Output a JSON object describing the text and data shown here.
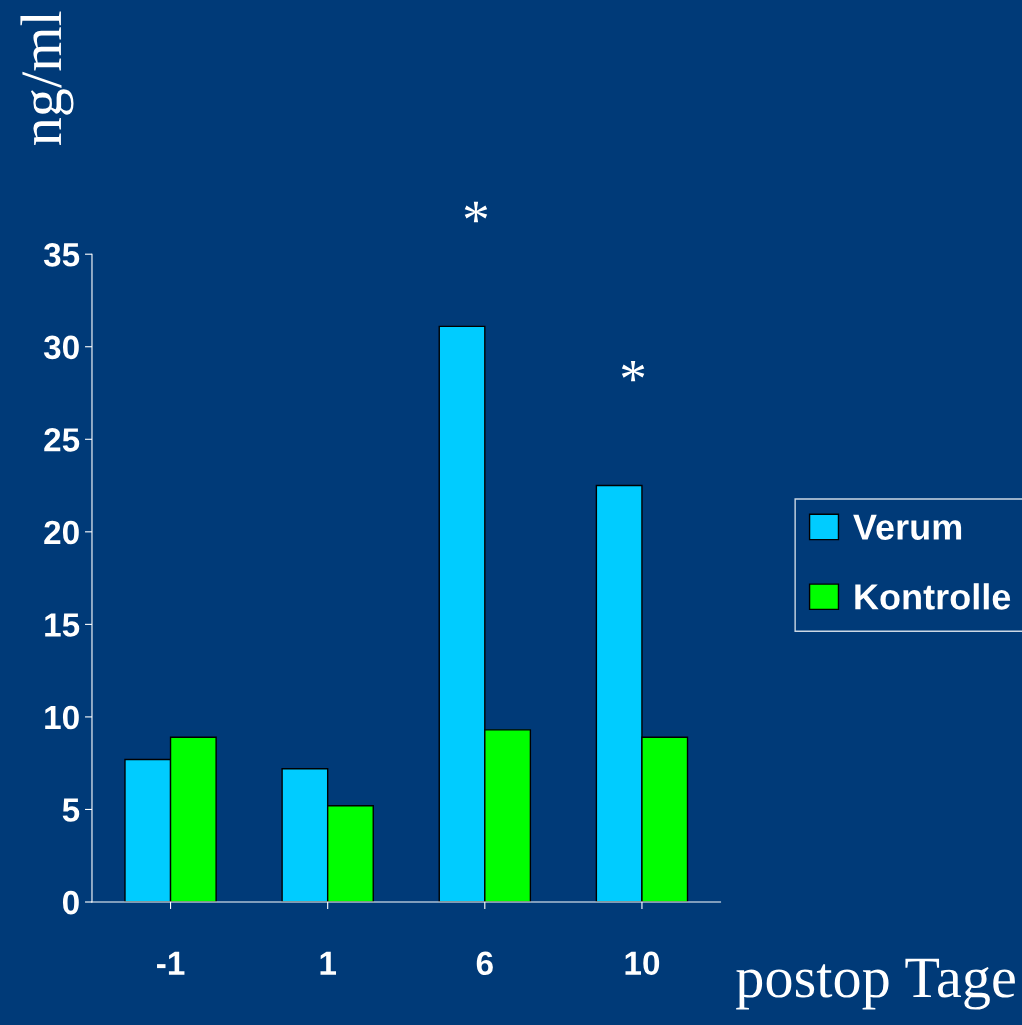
{
  "chart_data": {
    "type": "bar",
    "xlabel": "postop Tage",
    "ylabel": "ng/ml",
    "categories": [
      "-1",
      "1",
      "6",
      "10"
    ],
    "series": [
      {
        "name": "Verum",
        "color": "#00ccff",
        "values": [
          7.7,
          7.2,
          31.1,
          22.5
        ]
      },
      {
        "name": "Kontrolle",
        "color": "#00ff00",
        "values": [
          8.9,
          5.2,
          9.3,
          8.9
        ]
      }
    ],
    "ylim": [
      0,
      35
    ],
    "yticks": [
      0,
      5,
      10,
      15,
      20,
      25,
      30,
      35
    ],
    "grid": false,
    "legend": "right",
    "annotations": [
      {
        "text": "*",
        "x": "6",
        "y": 31.1
      },
      {
        "text": "*",
        "x": "10",
        "y": 22.5
      }
    ]
  }
}
